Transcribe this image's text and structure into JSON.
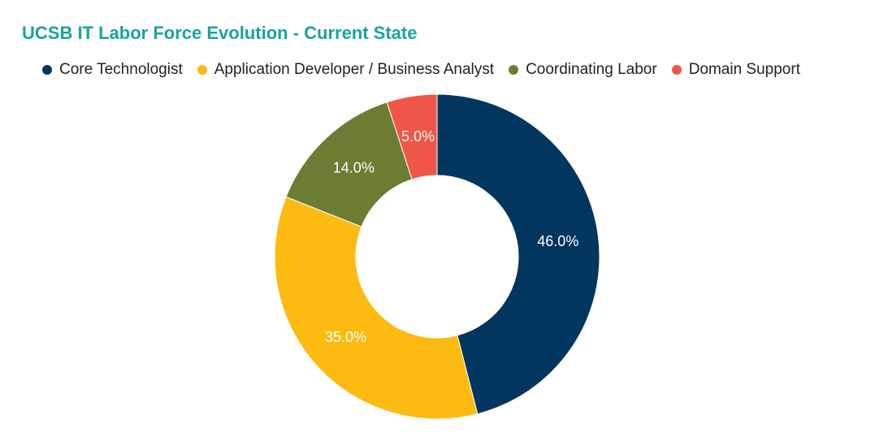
{
  "chart_data": {
    "type": "pie",
    "donut": true,
    "title": "UCSB IT Labor Force Evolution - Current State",
    "legend_position": "top",
    "categories": [
      "Core Technologist",
      "Application Developer / Business Analyst",
      "Coordinating Labor",
      "Domain Support"
    ],
    "values": [
      46.0,
      35.0,
      14.0,
      5.0
    ],
    "labels": [
      "46.0%",
      "35.0%",
      "14.0%",
      "5.0%"
    ],
    "colors": [
      "#03365f",
      "#fdbb11",
      "#6c7d33",
      "#ef5647"
    ],
    "title_color": "#1aa39a"
  }
}
